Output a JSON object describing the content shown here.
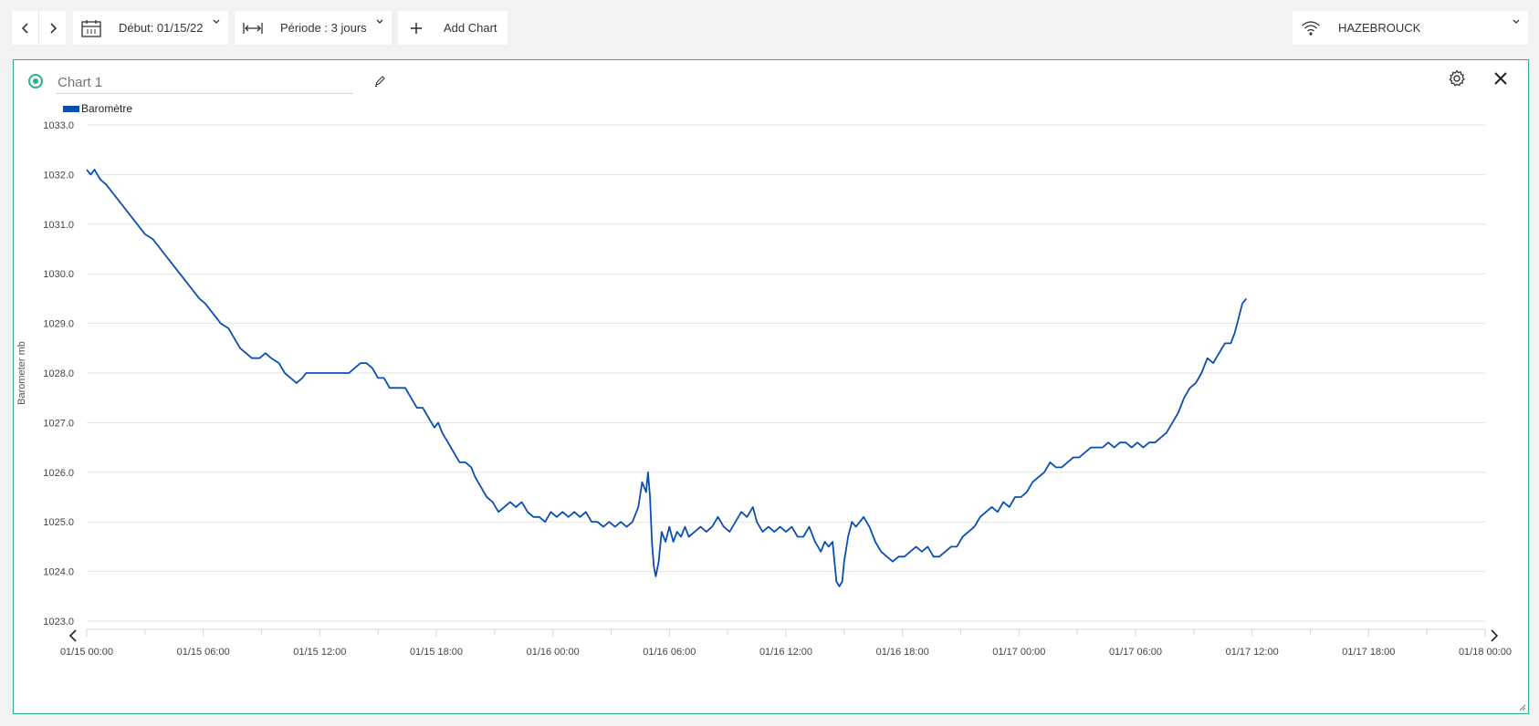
{
  "toolbar": {
    "prev_icon": "chevron-left-icon",
    "next_icon": "chevron-right-icon",
    "date_label": "Début: 01/15/22",
    "period_label": "Période : 3 jours",
    "add_chart_label": "Add Chart",
    "station_label": "HAZEBROUCK"
  },
  "panel": {
    "title_placeholder": "Chart 1",
    "title_value": "",
    "accent_color": "#2bb18a"
  },
  "chart_data": {
    "type": "line",
    "ylabel": "Barometer mb",
    "ylim": [
      1023.0,
      1033.0
    ],
    "yticks": [
      "1033.0",
      "1032.0",
      "1031.0",
      "1030.0",
      "1029.0",
      "1028.0",
      "1027.0",
      "1026.0",
      "1025.0",
      "1024.0",
      "1023.0"
    ],
    "xlim_hours": [
      0,
      72
    ],
    "xticks": [
      "01/15 00:00",
      "01/15 06:00",
      "01/15 12:00",
      "01/15 18:00",
      "01/16 00:00",
      "01/16 06:00",
      "01/16 12:00",
      "01/16 18:00",
      "01/17 00:00",
      "01/17 06:00",
      "01/17 12:00",
      "01/17 18:00",
      "01/18 00:00"
    ],
    "grid": true,
    "legend_position": "top-left",
    "series": [
      {
        "name": "Baromètre",
        "color": "#0a4fb0",
        "points": [
          [
            0.0,
            1032.1
          ],
          [
            0.2,
            1032.0
          ],
          [
            0.4,
            1032.1
          ],
          [
            0.7,
            1031.9
          ],
          [
            1.0,
            1031.8
          ],
          [
            1.4,
            1031.6
          ],
          [
            1.8,
            1031.4
          ],
          [
            2.2,
            1031.2
          ],
          [
            2.6,
            1031.0
          ],
          [
            3.0,
            1030.8
          ],
          [
            3.4,
            1030.7
          ],
          [
            3.8,
            1030.5
          ],
          [
            4.2,
            1030.3
          ],
          [
            4.6,
            1030.1
          ],
          [
            5.0,
            1029.9
          ],
          [
            5.4,
            1029.7
          ],
          [
            5.8,
            1029.5
          ],
          [
            6.1,
            1029.4
          ],
          [
            6.5,
            1029.2
          ],
          [
            6.9,
            1029.0
          ],
          [
            7.3,
            1028.9
          ],
          [
            7.6,
            1028.7
          ],
          [
            7.9,
            1028.5
          ],
          [
            8.2,
            1028.4
          ],
          [
            8.5,
            1028.3
          ],
          [
            8.9,
            1028.3
          ],
          [
            9.2,
            1028.4
          ],
          [
            9.5,
            1028.3
          ],
          [
            9.9,
            1028.2
          ],
          [
            10.2,
            1028.0
          ],
          [
            10.5,
            1027.9
          ],
          [
            10.8,
            1027.8
          ],
          [
            11.1,
            1027.9
          ],
          [
            11.3,
            1028.0
          ],
          [
            11.8,
            1028.0
          ],
          [
            12.4,
            1028.0
          ],
          [
            13.0,
            1028.0
          ],
          [
            13.5,
            1028.0
          ],
          [
            13.8,
            1028.1
          ],
          [
            14.1,
            1028.2
          ],
          [
            14.4,
            1028.2
          ],
          [
            14.7,
            1028.1
          ],
          [
            15.0,
            1027.9
          ],
          [
            15.3,
            1027.9
          ],
          [
            15.6,
            1027.7
          ],
          [
            16.0,
            1027.7
          ],
          [
            16.4,
            1027.7
          ],
          [
            16.7,
            1027.5
          ],
          [
            17.0,
            1027.3
          ],
          [
            17.3,
            1027.3
          ],
          [
            17.6,
            1027.1
          ],
          [
            17.9,
            1026.9
          ],
          [
            18.1,
            1027.0
          ],
          [
            18.3,
            1026.8
          ],
          [
            18.6,
            1026.6
          ],
          [
            18.9,
            1026.4
          ],
          [
            19.2,
            1026.2
          ],
          [
            19.5,
            1026.2
          ],
          [
            19.8,
            1026.1
          ],
          [
            20.0,
            1025.9
          ],
          [
            20.3,
            1025.7
          ],
          [
            20.6,
            1025.5
          ],
          [
            20.9,
            1025.4
          ],
          [
            21.2,
            1025.2
          ],
          [
            21.5,
            1025.3
          ],
          [
            21.8,
            1025.4
          ],
          [
            22.1,
            1025.3
          ],
          [
            22.4,
            1025.4
          ],
          [
            22.7,
            1025.2
          ],
          [
            23.0,
            1025.1
          ],
          [
            23.3,
            1025.1
          ],
          [
            23.6,
            1025.0
          ],
          [
            23.9,
            1025.2
          ],
          [
            24.2,
            1025.1
          ],
          [
            24.5,
            1025.2
          ],
          [
            24.8,
            1025.1
          ],
          [
            25.1,
            1025.2
          ],
          [
            25.4,
            1025.1
          ],
          [
            25.7,
            1025.2
          ],
          [
            26.0,
            1025.0
          ],
          [
            26.3,
            1025.0
          ],
          [
            26.6,
            1024.9
          ],
          [
            26.9,
            1025.0
          ],
          [
            27.2,
            1024.9
          ],
          [
            27.5,
            1025.0
          ],
          [
            27.8,
            1024.9
          ],
          [
            28.1,
            1025.0
          ],
          [
            28.4,
            1025.3
          ],
          [
            28.6,
            1025.8
          ],
          [
            28.8,
            1025.6
          ],
          [
            28.9,
            1026.0
          ],
          [
            29.0,
            1025.5
          ],
          [
            29.1,
            1024.6
          ],
          [
            29.2,
            1024.1
          ],
          [
            29.3,
            1023.9
          ],
          [
            29.45,
            1024.2
          ],
          [
            29.6,
            1024.8
          ],
          [
            29.8,
            1024.6
          ],
          [
            30.0,
            1024.9
          ],
          [
            30.2,
            1024.6
          ],
          [
            30.4,
            1024.8
          ],
          [
            30.6,
            1024.7
          ],
          [
            30.8,
            1024.9
          ],
          [
            31.0,
            1024.7
          ],
          [
            31.3,
            1024.8
          ],
          [
            31.6,
            1024.9
          ],
          [
            31.9,
            1024.8
          ],
          [
            32.2,
            1024.9
          ],
          [
            32.5,
            1025.1
          ],
          [
            32.8,
            1024.9
          ],
          [
            33.1,
            1024.8
          ],
          [
            33.4,
            1025.0
          ],
          [
            33.7,
            1025.2
          ],
          [
            34.0,
            1025.1
          ],
          [
            34.3,
            1025.3
          ],
          [
            34.5,
            1025.0
          ],
          [
            34.8,
            1024.8
          ],
          [
            35.1,
            1024.9
          ],
          [
            35.4,
            1024.8
          ],
          [
            35.7,
            1024.9
          ],
          [
            36.0,
            1024.8
          ],
          [
            36.3,
            1024.9
          ],
          [
            36.6,
            1024.7
          ],
          [
            36.9,
            1024.7
          ],
          [
            37.2,
            1024.9
          ],
          [
            37.5,
            1024.6
          ],
          [
            37.8,
            1024.4
          ],
          [
            38.0,
            1024.6
          ],
          [
            38.2,
            1024.5
          ],
          [
            38.4,
            1024.6
          ],
          [
            38.6,
            1023.8
          ],
          [
            38.75,
            1023.7
          ],
          [
            38.9,
            1023.8
          ],
          [
            39.0,
            1024.2
          ],
          [
            39.2,
            1024.7
          ],
          [
            39.4,
            1025.0
          ],
          [
            39.6,
            1024.9
          ],
          [
            39.8,
            1025.0
          ],
          [
            40.0,
            1025.1
          ],
          [
            40.3,
            1024.9
          ],
          [
            40.6,
            1024.6
          ],
          [
            40.9,
            1024.4
          ],
          [
            41.2,
            1024.3
          ],
          [
            41.5,
            1024.2
          ],
          [
            41.8,
            1024.3
          ],
          [
            42.1,
            1024.3
          ],
          [
            42.4,
            1024.4
          ],
          [
            42.7,
            1024.5
          ],
          [
            43.0,
            1024.4
          ],
          [
            43.3,
            1024.5
          ],
          [
            43.6,
            1024.3
          ],
          [
            43.9,
            1024.3
          ],
          [
            44.2,
            1024.4
          ],
          [
            44.5,
            1024.5
          ],
          [
            44.8,
            1024.5
          ],
          [
            45.1,
            1024.7
          ],
          [
            45.4,
            1024.8
          ],
          [
            45.7,
            1024.9
          ],
          [
            46.0,
            1025.1
          ],
          [
            46.3,
            1025.2
          ],
          [
            46.6,
            1025.3
          ],
          [
            46.9,
            1025.2
          ],
          [
            47.2,
            1025.4
          ],
          [
            47.5,
            1025.3
          ],
          [
            47.8,
            1025.5
          ],
          [
            48.1,
            1025.5
          ],
          [
            48.4,
            1025.6
          ],
          [
            48.7,
            1025.8
          ],
          [
            49.0,
            1025.9
          ],
          [
            49.3,
            1026.0
          ],
          [
            49.6,
            1026.2
          ],
          [
            49.9,
            1026.1
          ],
          [
            50.2,
            1026.1
          ],
          [
            50.5,
            1026.2
          ],
          [
            50.8,
            1026.3
          ],
          [
            51.1,
            1026.3
          ],
          [
            51.4,
            1026.4
          ],
          [
            51.7,
            1026.5
          ],
          [
            52.0,
            1026.5
          ],
          [
            52.3,
            1026.5
          ],
          [
            52.6,
            1026.6
          ],
          [
            52.9,
            1026.5
          ],
          [
            53.2,
            1026.6
          ],
          [
            53.5,
            1026.6
          ],
          [
            53.8,
            1026.5
          ],
          [
            54.1,
            1026.6
          ],
          [
            54.4,
            1026.5
          ],
          [
            54.7,
            1026.6
          ],
          [
            55.0,
            1026.6
          ],
          [
            55.3,
            1026.7
          ],
          [
            55.6,
            1026.8
          ],
          [
            55.9,
            1027.0
          ],
          [
            56.2,
            1027.2
          ],
          [
            56.5,
            1027.5
          ],
          [
            56.8,
            1027.7
          ],
          [
            57.1,
            1027.8
          ],
          [
            57.4,
            1028.0
          ],
          [
            57.7,
            1028.3
          ],
          [
            58.0,
            1028.2
          ],
          [
            58.3,
            1028.4
          ],
          [
            58.6,
            1028.6
          ],
          [
            58.9,
            1028.6
          ],
          [
            59.1,
            1028.8
          ],
          [
            59.3,
            1029.1
          ],
          [
            59.5,
            1029.4
          ],
          [
            59.7,
            1029.5
          ]
        ]
      }
    ]
  }
}
